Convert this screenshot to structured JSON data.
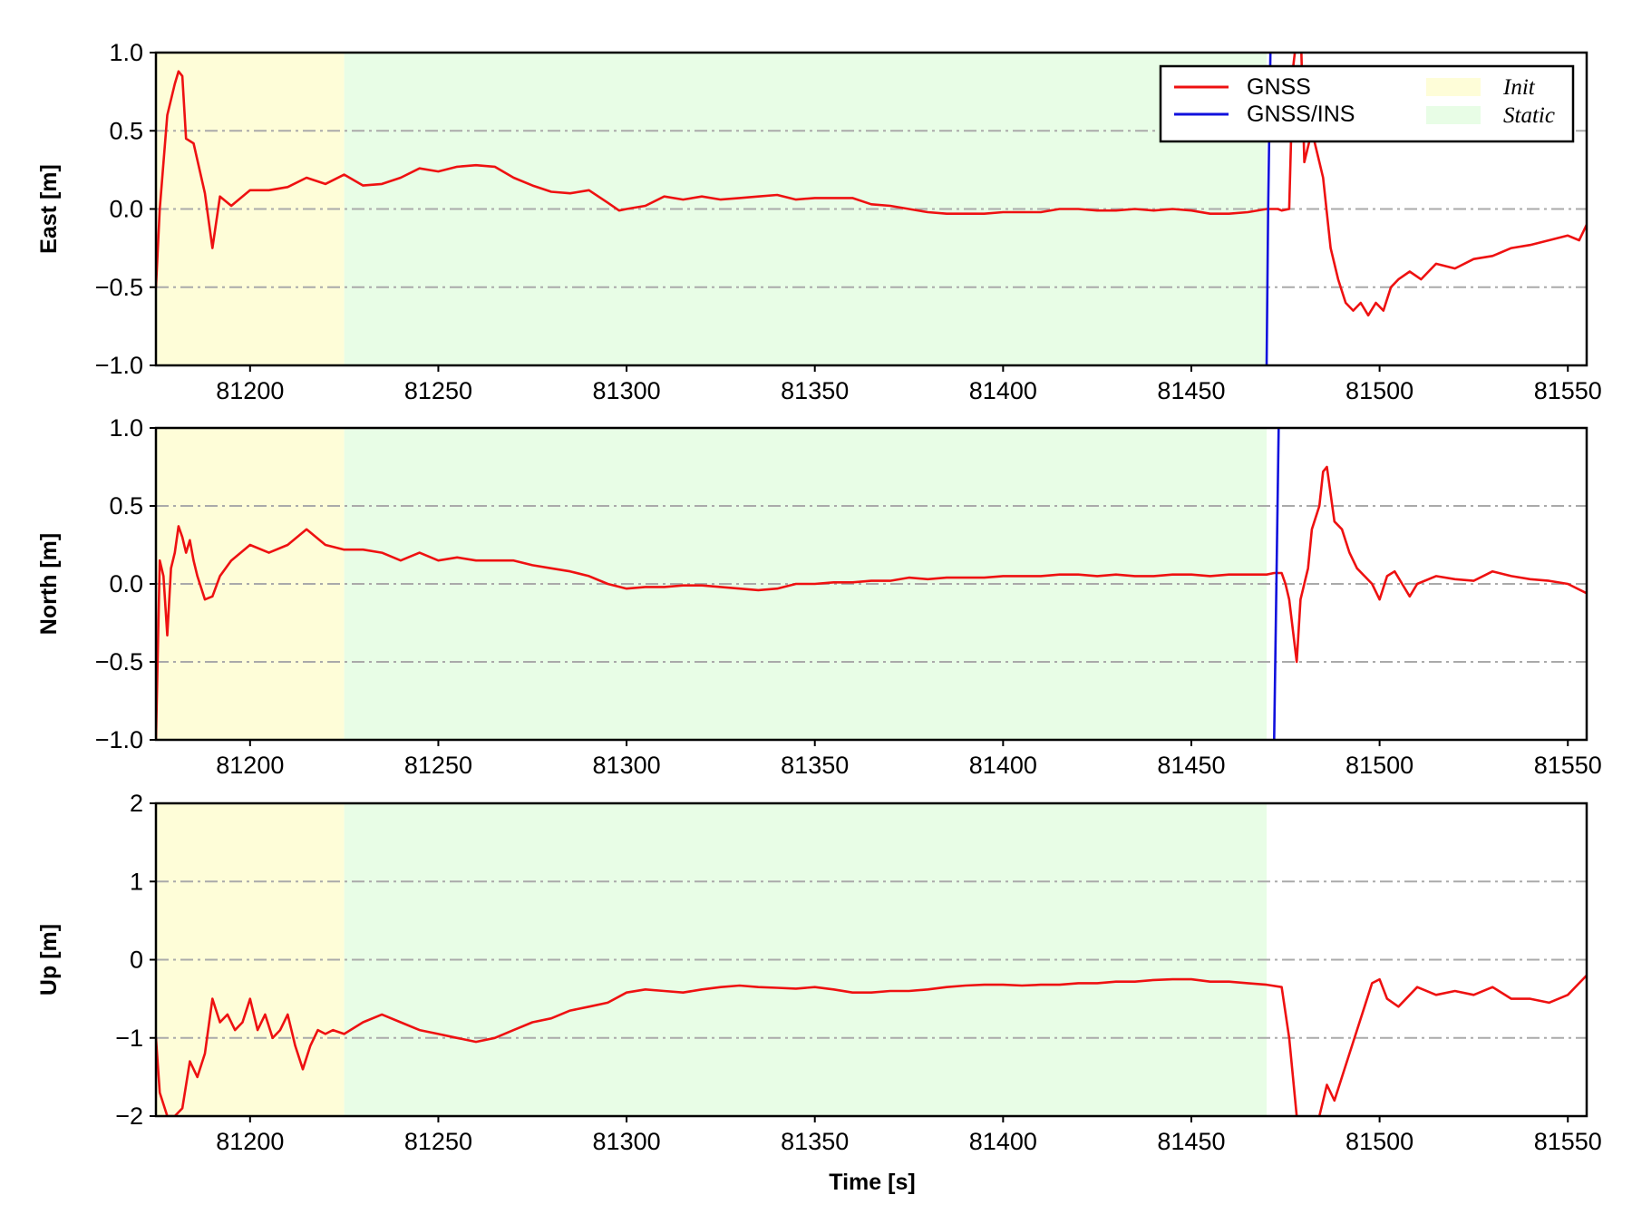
{
  "colors": {
    "gnss": "#ee1111",
    "gnss_ins": "#1111dd",
    "init_region": "#fefdd8",
    "static_region": "#e8fde6",
    "grid": "#aaaaaa",
    "frame": "#000000"
  },
  "chart_data": [
    {
      "type": "line",
      "ylabel": "East [m]",
      "xlim": [
        81175,
        81555
      ],
      "ylim": [
        -1.0,
        1.0
      ],
      "xticks": [
        "81200",
        "81250",
        "81300",
        "81350",
        "81400",
        "81450",
        "81500",
        "81550"
      ],
      "yticks": [
        "−1.0",
        "−0.5",
        "0.0",
        "0.5",
        "1.0"
      ],
      "ytick_values": [
        -1.0,
        -0.5,
        0.0,
        0.5,
        1.0
      ],
      "grid": "horizontal dash-dot",
      "legend": {
        "placement": "top-right",
        "series_entries": [
          "GNSS",
          "GNSS/INS"
        ],
        "region_entries": [
          "Init",
          "Static"
        ]
      },
      "regions": [
        {
          "name": "Init",
          "x": [
            81175,
            81225
          ]
        },
        {
          "name": "Static",
          "x": [
            81225,
            81470
          ]
        }
      ],
      "series": [
        {
          "name": "GNSS",
          "x": [
            81175,
            81176,
            81178,
            81180,
            81181,
            81182,
            81183,
            81185,
            81188,
            81190,
            81192,
            81195,
            81200,
            81205,
            81210,
            81215,
            81220,
            81225,
            81230,
            81235,
            81240,
            81245,
            81250,
            81255,
            81260,
            81265,
            81270,
            81275,
            81280,
            81285,
            81290,
            81295,
            81298,
            81300,
            81305,
            81310,
            81315,
            81320,
            81325,
            81330,
            81335,
            81340,
            81345,
            81350,
            81355,
            81360,
            81365,
            81370,
            81375,
            81380,
            81385,
            81390,
            81395,
            81400,
            81405,
            81410,
            81415,
            81420,
            81425,
            81430,
            81435,
            81440,
            81445,
            81450,
            81455,
            81460,
            81465,
            81470,
            81473,
            81474,
            81476,
            81477,
            81478,
            81479,
            81480,
            81482,
            81484,
            81485,
            81487,
            81489,
            81491,
            81493,
            81495,
            81497,
            81499,
            81501,
            81503,
            81505,
            81508,
            81511,
            81515,
            81520,
            81525,
            81530,
            81535,
            81540,
            81545,
            81550,
            81553,
            81555
          ],
          "y": [
            -0.5,
            0.0,
            0.6,
            0.8,
            0.88,
            0.85,
            0.45,
            0.42,
            0.1,
            -0.25,
            0.08,
            0.02,
            0.12,
            0.12,
            0.14,
            0.2,
            0.16,
            0.22,
            0.15,
            0.16,
            0.2,
            0.26,
            0.24,
            0.27,
            0.28,
            0.27,
            0.2,
            0.15,
            0.11,
            0.1,
            0.12,
            0.04,
            -0.01,
            0.0,
            0.02,
            0.08,
            0.06,
            0.08,
            0.06,
            0.07,
            0.08,
            0.09,
            0.06,
            0.07,
            0.07,
            0.07,
            0.03,
            0.02,
            0.0,
            -0.02,
            -0.03,
            -0.03,
            -0.03,
            -0.02,
            -0.02,
            -0.02,
            0.0,
            0.0,
            -0.01,
            -0.01,
            0.0,
            -0.01,
            0.0,
            -0.01,
            -0.03,
            -0.03,
            -0.02,
            0.0,
            0.0,
            -0.01,
            0.0,
            0.9,
            1.1,
            1.2,
            0.3,
            0.5,
            0.3,
            0.2,
            -0.25,
            -0.45,
            -0.6,
            -0.65,
            -0.6,
            -0.68,
            -0.6,
            -0.65,
            -0.5,
            -0.45,
            -0.4,
            -0.45,
            -0.35,
            -0.38,
            -0.32,
            -0.3,
            -0.25,
            -0.23,
            -0.2,
            -0.17,
            -0.2,
            -0.1
          ]
        },
        {
          "name": "GNSS/INS",
          "x": [
            81470,
            81470.4,
            81471
          ],
          "y": [
            -1.0,
            0.0,
            1.0
          ]
        }
      ]
    },
    {
      "type": "line",
      "ylabel": "North [m]",
      "xlim": [
        81175,
        81555
      ],
      "ylim": [
        -1.0,
        1.0
      ],
      "xticks": [
        "81200",
        "81250",
        "81300",
        "81350",
        "81400",
        "81450",
        "81500",
        "81550"
      ],
      "yticks": [
        "−1.0",
        "−0.5",
        "0.0",
        "0.5",
        "1.0"
      ],
      "ytick_values": [
        -1.0,
        -0.5,
        0.0,
        0.5,
        1.0
      ],
      "grid": "horizontal dash-dot",
      "regions": [
        {
          "name": "Init",
          "x": [
            81175,
            81225
          ]
        },
        {
          "name": "Static",
          "x": [
            81225,
            81470
          ]
        }
      ],
      "series": [
        {
          "name": "GNSS",
          "x": [
            81175,
            81176,
            81177,
            81178,
            81179,
            81180,
            81181,
            81182,
            81183,
            81184,
            81185,
            81186,
            81188,
            81190,
            81192,
            81195,
            81200,
            81205,
            81210,
            81215,
            81220,
            81225,
            81230,
            81235,
            81240,
            81245,
            81250,
            81255,
            81260,
            81265,
            81270,
            81275,
            81280,
            81285,
            81290,
            81295,
            81300,
            81305,
            81310,
            81315,
            81320,
            81325,
            81330,
            81335,
            81340,
            81345,
            81350,
            81355,
            81360,
            81365,
            81370,
            81375,
            81380,
            81385,
            81390,
            81395,
            81400,
            81405,
            81410,
            81415,
            81420,
            81425,
            81430,
            81435,
            81440,
            81445,
            81450,
            81455,
            81460,
            81465,
            81470,
            81472,
            81474,
            81475,
            81476,
            81478,
            81479,
            81481,
            81482,
            81484,
            81485,
            81486,
            81488,
            81490,
            81492,
            81494,
            81496,
            81498,
            81500,
            81502,
            81504,
            81506,
            81508,
            81510,
            81515,
            81520,
            81525,
            81530,
            81535,
            81540,
            81545,
            81550,
            81555
          ],
          "y": [
            -1.0,
            0.15,
            0.05,
            -0.33,
            0.1,
            0.2,
            0.37,
            0.3,
            0.2,
            0.28,
            0.15,
            0.05,
            -0.1,
            -0.08,
            0.05,
            0.15,
            0.25,
            0.2,
            0.25,
            0.35,
            0.25,
            0.22,
            0.22,
            0.2,
            0.15,
            0.2,
            0.15,
            0.17,
            0.15,
            0.15,
            0.15,
            0.12,
            0.1,
            0.08,
            0.05,
            0.0,
            -0.03,
            -0.02,
            -0.02,
            -0.01,
            -0.01,
            -0.02,
            -0.03,
            -0.04,
            -0.03,
            0.0,
            0.0,
            0.01,
            0.01,
            0.02,
            0.02,
            0.04,
            0.03,
            0.04,
            0.04,
            0.04,
            0.05,
            0.05,
            0.05,
            0.06,
            0.06,
            0.05,
            0.06,
            0.05,
            0.05,
            0.06,
            0.06,
            0.05,
            0.06,
            0.06,
            0.06,
            0.07,
            0.07,
            0.0,
            -0.1,
            -0.5,
            -0.1,
            0.1,
            0.35,
            0.5,
            0.72,
            0.75,
            0.4,
            0.35,
            0.2,
            0.1,
            0.05,
            0.0,
            -0.1,
            0.05,
            0.08,
            0.0,
            -0.08,
            0.0,
            0.05,
            0.03,
            0.02,
            0.08,
            0.05,
            0.03,
            0.02,
            0.0,
            -0.06
          ]
        },
        {
          "name": "GNSS/INS",
          "x": [
            81472,
            81472.6,
            81473.2
          ],
          "y": [
            -1.0,
            0.0,
            1.0
          ]
        }
      ]
    },
    {
      "type": "line",
      "ylabel": "Up [m]",
      "xlabel": "Time [s]",
      "xlim": [
        81175,
        81555
      ],
      "ylim": [
        -2,
        2
      ],
      "xticks": [
        "81200",
        "81250",
        "81300",
        "81350",
        "81400",
        "81450",
        "81500",
        "81550"
      ],
      "yticks": [
        "−2",
        "−1",
        "0",
        "1",
        "2"
      ],
      "ytick_values": [
        -2,
        -1,
        0,
        1,
        2
      ],
      "grid": "horizontal dash-dot",
      "regions": [
        {
          "name": "Init",
          "x": [
            81175,
            81225
          ]
        },
        {
          "name": "Static",
          "x": [
            81225,
            81470
          ]
        }
      ],
      "series": [
        {
          "name": "GNSS",
          "x": [
            81175,
            81176,
            81178,
            81180,
            81182,
            81184,
            81186,
            81188,
            81190,
            81192,
            81194,
            81196,
            81198,
            81200,
            81202,
            81204,
            81206,
            81208,
            81210,
            81212,
            81214,
            81216,
            81218,
            81220,
            81222,
            81225,
            81230,
            81235,
            81240,
            81245,
            81250,
            81255,
            81260,
            81265,
            81270,
            81275,
            81280,
            81285,
            81290,
            81295,
            81300,
            81305,
            81310,
            81315,
            81320,
            81325,
            81330,
            81335,
            81340,
            81345,
            81350,
            81355,
            81360,
            81365,
            81370,
            81375,
            81380,
            81385,
            81390,
            81395,
            81400,
            81405,
            81410,
            81415,
            81420,
            81425,
            81430,
            81435,
            81440,
            81445,
            81450,
            81455,
            81460,
            81465,
            81470,
            81474,
            81476,
            81478,
            81480,
            81482,
            81484,
            81486,
            81488,
            81490,
            81492,
            81494,
            81496,
            81498,
            81500,
            81502,
            81505,
            81510,
            81515,
            81520,
            81525,
            81530,
            81535,
            81540,
            81545,
            81550,
            81555
          ],
          "y": [
            -1.0,
            -1.7,
            -2.0,
            -2.0,
            -1.9,
            -1.3,
            -1.5,
            -1.2,
            -0.5,
            -0.8,
            -0.7,
            -0.9,
            -0.8,
            -0.5,
            -0.9,
            -0.7,
            -1.0,
            -0.9,
            -0.7,
            -1.1,
            -1.4,
            -1.1,
            -0.9,
            -0.95,
            -0.9,
            -0.95,
            -0.8,
            -0.7,
            -0.8,
            -0.9,
            -0.95,
            -1.0,
            -1.05,
            -1.0,
            -0.9,
            -0.8,
            -0.75,
            -0.65,
            -0.6,
            -0.55,
            -0.42,
            -0.38,
            -0.4,
            -0.42,
            -0.38,
            -0.35,
            -0.33,
            -0.35,
            -0.36,
            -0.37,
            -0.35,
            -0.38,
            -0.42,
            -0.42,
            -0.4,
            -0.4,
            -0.38,
            -0.35,
            -0.33,
            -0.32,
            -0.32,
            -0.33,
            -0.32,
            -0.32,
            -0.3,
            -0.3,
            -0.28,
            -0.28,
            -0.26,
            -0.25,
            -0.25,
            -0.28,
            -0.28,
            -0.3,
            -0.32,
            -0.35,
            -1.0,
            -2.0,
            -2.3,
            -2.2,
            -2.0,
            -1.6,
            -1.8,
            -1.5,
            -1.2,
            -0.9,
            -0.6,
            -0.3,
            -0.25,
            -0.5,
            -0.6,
            -0.35,
            -0.45,
            -0.4,
            -0.45,
            -0.35,
            -0.5,
            -0.5,
            -0.55,
            -0.45,
            -0.2
          ]
        }
      ]
    }
  ]
}
